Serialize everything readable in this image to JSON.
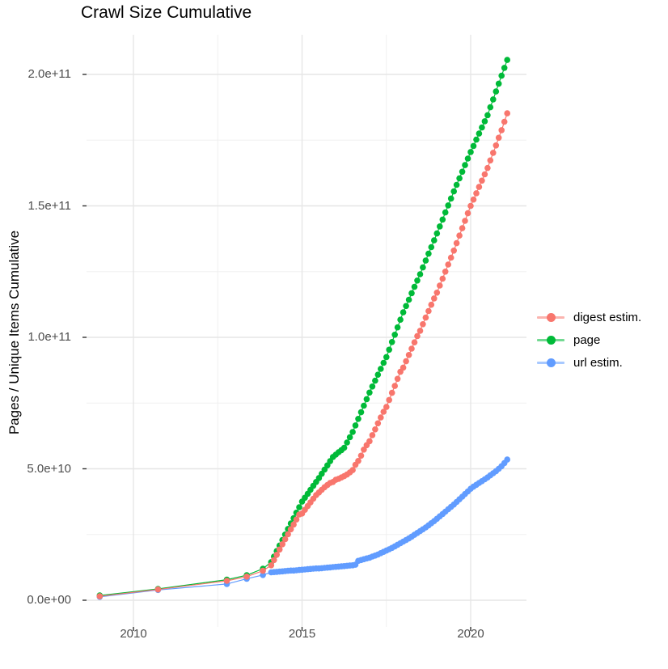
{
  "title": "Crawl Size Cumulative",
  "legend": {
    "items": [
      {
        "label": "digest estim.",
        "color": "#F8766D"
      },
      {
        "label": "page",
        "color": "#00BA38"
      },
      {
        "label": "url estim.",
        "color": "#619CFF"
      }
    ]
  },
  "chart_data": {
    "type": "line",
    "title": "Crawl Size Cumulative",
    "xlabel": "",
    "ylabel": "Pages / Unique Items Cumulative",
    "legend_position": "right",
    "grid": true,
    "marker": "filled-circle",
    "x_unit": "year (decimal)",
    "value_unit": "billions (1e9) of pages / unique items",
    "xlim": [
      2008.4,
      2021.7
    ],
    "ylim_e9": [
      -10,
      215
    ],
    "x_ticks": [
      2010,
      2015,
      2020
    ],
    "x_tick_labels": [
      "2010",
      "2015",
      "2020"
    ],
    "x_minor_ticks": [
      2012.5,
      2017.5
    ],
    "y_ticks_e9": [
      0,
      50,
      100,
      150,
      200
    ],
    "y_tick_labels": [
      "0.0e+00",
      "5.0e+10",
      "1.0e+11",
      "1.5e+11",
      "2.0e+11"
    ],
    "y_minor_ticks_e9": [
      25,
      75,
      125,
      175
    ],
    "draw_order": [
      "page",
      "url estim.",
      "digest estim."
    ],
    "x": [
      2009.0,
      2010.73,
      2012.77,
      2013.36,
      2013.84,
      2014.083,
      2014.167,
      2014.25,
      2014.333,
      2014.417,
      2014.5,
      2014.583,
      2014.667,
      2014.75,
      2014.833,
      2014.917,
      2015.0,
      2015.083,
      2015.167,
      2015.25,
      2015.333,
      2015.417,
      2015.5,
      2015.583,
      2015.667,
      2015.75,
      2015.833,
      2015.917,
      2016.0,
      2016.083,
      2016.167,
      2016.25,
      2016.333,
      2016.417,
      2016.5,
      2016.583,
      2016.667,
      2016.75,
      2016.833,
      2016.917,
      2017.0,
      2017.083,
      2017.167,
      2017.25,
      2017.333,
      2017.417,
      2017.5,
      2017.583,
      2017.667,
      2017.75,
      2017.833,
      2017.917,
      2018.0,
      2018.083,
      2018.167,
      2018.25,
      2018.333,
      2018.417,
      2018.5,
      2018.583,
      2018.667,
      2018.75,
      2018.833,
      2018.917,
      2019.0,
      2019.083,
      2019.167,
      2019.25,
      2019.333,
      2019.417,
      2019.5,
      2019.583,
      2019.667,
      2019.75,
      2019.833,
      2019.917,
      2020.0,
      2020.083,
      2020.167,
      2020.25,
      2020.333,
      2020.417,
      2020.5,
      2020.583,
      2020.667,
      2020.75,
      2020.833,
      2020.917,
      2021.0,
      2021.083
    ],
    "series": [
      {
        "name": "digest estim.",
        "color": "#F8766D",
        "values_e9": [
          1.5,
          4.1,
          7.4,
          9.0,
          11.2,
          13.3,
          15.3,
          17.3,
          19.3,
          21.3,
          23.2,
          25.1,
          27.0,
          28.8,
          30.7,
          32.6,
          33.0,
          34.4,
          35.8,
          37.2,
          38.6,
          40.0,
          41.0,
          42.0,
          43.0,
          43.8,
          44.6,
          45.0,
          45.8,
          46.2,
          46.7,
          47.2,
          47.8,
          48.6,
          49.5,
          51.5,
          53.0,
          55.0,
          57.3,
          59.0,
          60.5,
          62.8,
          65.0,
          67.3,
          69.5,
          71.7,
          73.5,
          76.2,
          78.9,
          81.5,
          84.2,
          86.9,
          88.5,
          90.9,
          93.3,
          95.7,
          98.1,
          100.5,
          102.5,
          105.0,
          107.5,
          110.0,
          112.4,
          114.8,
          117.0,
          119.7,
          122.3,
          125.0,
          127.7,
          130.3,
          133.0,
          135.8,
          138.7,
          141.5,
          144.3,
          147.2,
          150.0,
          152.4,
          154.8,
          157.2,
          159.6,
          162.0,
          164.4,
          167.3,
          170.2,
          173.0,
          175.9,
          178.8,
          182.0,
          185.2
        ]
      },
      {
        "name": "page",
        "color": "#00BA38",
        "values_e9": [
          1.8,
          4.3,
          7.8,
          9.5,
          12.0,
          14.5,
          16.6,
          18.7,
          20.8,
          22.9,
          25.0,
          27.1,
          29.2,
          31.2,
          33.3,
          35.4,
          37.5,
          39.0,
          40.5,
          42.0,
          43.5,
          45.0,
          46.5,
          48.1,
          49.7,
          51.3,
          52.9,
          54.5,
          55.4,
          56.3,
          57.1,
          58.0,
          60.0,
          62.0,
          64.0,
          66.5,
          69.0,
          71.5,
          74.0,
          76.5,
          79.0,
          81.3,
          83.5,
          85.8,
          88.0,
          90.3,
          92.5,
          95.3,
          98.2,
          101.0,
          103.8,
          106.7,
          109.5,
          111.9,
          114.3,
          116.8,
          119.2,
          121.6,
          124.0,
          126.6,
          129.2,
          131.8,
          134.3,
          136.9,
          139.5,
          142.2,
          144.8,
          147.5,
          150.2,
          152.8,
          155.5,
          158.0,
          160.5,
          163.0,
          165.5,
          168.0,
          170.5,
          172.8,
          175.2,
          177.5,
          179.8,
          182.2,
          184.5,
          187.5,
          190.5,
          193.5,
          196.5,
          199.5,
          202.5,
          205.5
        ]
      },
      {
        "name": "url estim.",
        "color": "#619CFF",
        "values_e9": [
          1.3,
          3.9,
          6.2,
          8.2,
          9.6,
          10.6,
          10.7,
          10.8,
          10.9,
          11.0,
          11.1,
          11.2,
          11.3,
          11.3,
          11.4,
          11.5,
          11.6,
          11.7,
          11.8,
          11.9,
          12.0,
          12.1,
          12.1,
          12.2,
          12.3,
          12.4,
          12.5,
          12.6,
          12.7,
          12.8,
          12.9,
          13.0,
          13.1,
          13.2,
          13.3,
          13.5,
          15.0,
          15.3,
          15.6,
          15.9,
          16.2,
          16.6,
          17.0,
          17.4,
          17.9,
          18.4,
          18.9,
          19.4,
          19.9,
          20.5,
          21.1,
          21.7,
          22.3,
          22.9,
          23.5,
          24.2,
          24.9,
          25.6,
          26.3,
          27.0,
          27.7,
          28.5,
          29.3,
          30.1,
          31.0,
          31.9,
          32.8,
          33.7,
          34.6,
          35.5,
          36.4,
          37.4,
          38.4,
          39.4,
          40.4,
          41.4,
          42.4,
          43.2,
          43.9,
          44.6,
          45.3,
          46.0,
          46.7,
          47.5,
          48.3,
          49.1,
          50.0,
          51.0,
          52.2,
          53.5
        ]
      }
    ]
  }
}
